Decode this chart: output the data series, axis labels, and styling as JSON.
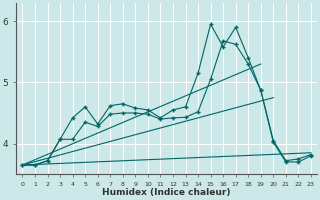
{
  "xlabel": "Humidex (Indice chaleur)",
  "bg_color": "#cce8e8",
  "grid_color": "#aadddd",
  "line_color": "#006666",
  "x_ticks": [
    0,
    1,
    2,
    3,
    4,
    5,
    6,
    7,
    8,
    9,
    10,
    11,
    12,
    13,
    14,
    15,
    16,
    17,
    18,
    19,
    20,
    21,
    22,
    23
  ],
  "ylim": [
    3.5,
    6.3
  ],
  "xlim": [
    -0.5,
    23.5
  ],
  "yticks": [
    4,
    5,
    6
  ],
  "ytick_labels": [
    "4",
    "5",
    "6"
  ],
  "line1_x": [
    0,
    1,
    2,
    3,
    4,
    5,
    6,
    7,
    8,
    9,
    10,
    11,
    12,
    13,
    14,
    15,
    16,
    17,
    18,
    19,
    20,
    21,
    22,
    23
  ],
  "line1_y": [
    3.65,
    3.65,
    3.72,
    4.07,
    4.42,
    4.6,
    4.32,
    4.62,
    4.65,
    4.58,
    4.55,
    4.42,
    4.55,
    4.6,
    5.15,
    5.95,
    5.58,
    5.9,
    5.4,
    4.87,
    4.05,
    3.72,
    3.75,
    3.82
  ],
  "line2_x": [
    0,
    1,
    2,
    3,
    4,
    5,
    6,
    7,
    8,
    9,
    10,
    11,
    12,
    13,
    14,
    15,
    16,
    17,
    18,
    19,
    20,
    21,
    22,
    23
  ],
  "line2_y": [
    3.65,
    3.65,
    3.72,
    4.07,
    4.07,
    4.35,
    4.28,
    4.48,
    4.5,
    4.5,
    4.48,
    4.4,
    4.42,
    4.43,
    4.52,
    5.05,
    5.68,
    5.62,
    5.3,
    4.87,
    4.02,
    3.7,
    3.7,
    3.8
  ],
  "line3_x": [
    0,
    19
  ],
  "line3_y": [
    3.65,
    5.3
  ],
  "line4_x": [
    0,
    20
  ],
  "line4_y": [
    3.65,
    4.75
  ],
  "line5_x": [
    0,
    23
  ],
  "line5_y": [
    3.65,
    3.85
  ]
}
